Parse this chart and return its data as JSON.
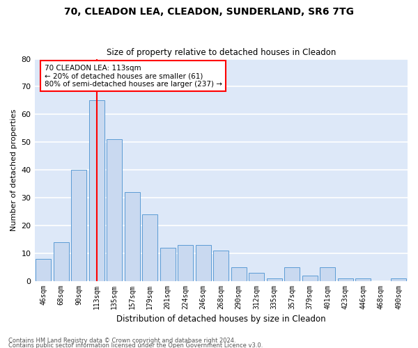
{
  "title_line1": "70, CLEADON LEA, CLEADON, SUNDERLAND, SR6 7TG",
  "title_line2": "Size of property relative to detached houses in Cleadon",
  "xlabel": "Distribution of detached houses by size in Cleadon",
  "ylabel": "Number of detached properties",
  "categories": [
    "46sqm",
    "68sqm",
    "90sqm",
    "113sqm",
    "135sqm",
    "157sqm",
    "179sqm",
    "201sqm",
    "224sqm",
    "246sqm",
    "268sqm",
    "290sqm",
    "312sqm",
    "335sqm",
    "357sqm",
    "379sqm",
    "401sqm",
    "423sqm",
    "446sqm",
    "468sqm",
    "490sqm"
  ],
  "values": [
    8,
    14,
    40,
    65,
    51,
    32,
    24,
    12,
    13,
    13,
    11,
    5,
    3,
    1,
    5,
    2,
    5,
    1,
    1,
    0,
    1
  ],
  "bar_color": "#c9d9f0",
  "bar_edge_color": "#5b9bd5",
  "red_line_x": 3,
  "annotation_text": "70 CLEADON LEA: 113sqm\n← 20% of detached houses are smaller (61)\n80% of semi-detached houses are larger (237) →",
  "annotation_box_color": "white",
  "annotation_box_edge_color": "red",
  "ylim": [
    0,
    80
  ],
  "yticks": [
    0,
    10,
    20,
    30,
    40,
    50,
    60,
    70,
    80
  ],
  "background_color": "#dde8f8",
  "footer_line1": "Contains HM Land Registry data © Crown copyright and database right 2024.",
  "footer_line2": "Contains public sector information licensed under the Open Government Licence v3.0."
}
